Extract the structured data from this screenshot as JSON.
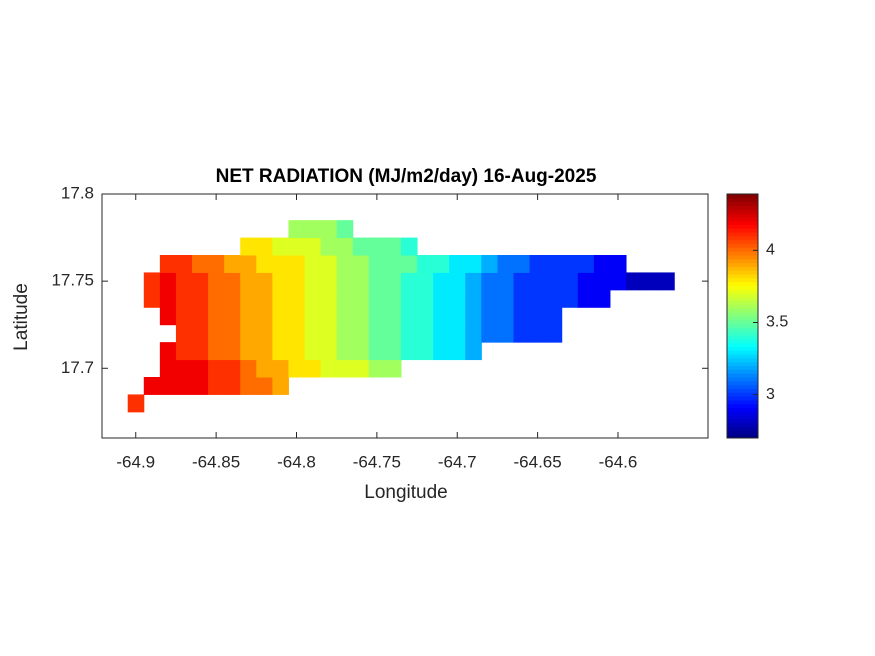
{
  "chart_data": {
    "type": "heatmap",
    "title": "NET RADIATION (MJ/m2/day) 16-Aug-2025",
    "xlabel": "Longitude",
    "ylabel": "Latitude",
    "xlim": [
      -64.921,
      -64.544
    ],
    "ylim": [
      17.66,
      17.8
    ],
    "xticks": [
      -64.9,
      -64.85,
      -64.8,
      -64.75,
      -64.7,
      -64.65,
      -64.6
    ],
    "yticks": [
      17.7,
      17.75,
      17.8
    ],
    "colormap": "jet",
    "clim": [
      2.7,
      4.39
    ],
    "cticks": [
      3,
      3.5,
      4
    ],
    "x": [
      -64.9,
      -64.89,
      -64.88,
      -64.87,
      -64.86,
      -64.85,
      -64.84,
      -64.83,
      -64.82,
      -64.81,
      -64.8,
      -64.79,
      -64.78,
      -64.77,
      -64.76,
      -64.75,
      -64.74,
      -64.73,
      -64.72,
      -64.71,
      -64.7,
      -64.69,
      -64.68,
      -64.67,
      -64.66,
      -64.65,
      -64.64,
      -64.63,
      -64.62,
      -64.61,
      -64.6,
      -64.59,
      -64.58,
      -64.57
    ],
    "y": [
      17.68,
      17.69,
      17.7,
      17.71,
      17.72,
      17.73,
      17.74,
      17.75,
      17.76,
      17.77,
      17.78
    ],
    "z": [
      [
        4.1,
        null,
        null,
        null,
        null,
        null,
        null,
        null,
        null,
        null,
        null,
        null,
        null,
        null,
        null,
        null,
        null,
        null,
        null,
        null,
        null,
        null,
        null,
        null,
        null,
        null,
        null,
        null,
        null,
        null,
        null,
        null,
        null,
        null
      ],
      [
        null,
        4.2,
        4.2,
        4.2,
        4.2,
        4.1,
        4.1,
        4.0,
        4.0,
        3.9,
        null,
        null,
        null,
        null,
        null,
        null,
        null,
        null,
        null,
        null,
        null,
        null,
        null,
        null,
        null,
        null,
        null,
        null,
        null,
        null,
        null,
        null,
        null,
        null
      ],
      [
        null,
        null,
        4.2,
        4.2,
        4.2,
        4.1,
        4.1,
        4.0,
        3.9,
        3.9,
        3.8,
        3.8,
        3.7,
        3.7,
        3.7,
        3.6,
        3.6,
        null,
        null,
        null,
        null,
        null,
        null,
        null,
        null,
        null,
        null,
        null,
        null,
        null,
        null,
        null,
        null,
        null
      ],
      [
        null,
        null,
        4.2,
        4.1,
        4.1,
        4.0,
        4.0,
        3.9,
        3.9,
        3.8,
        3.8,
        3.7,
        3.7,
        3.6,
        3.6,
        3.5,
        3.5,
        3.4,
        3.4,
        3.3,
        3.3,
        3.2,
        null,
        null,
        null,
        null,
        null,
        null,
        null,
        null,
        null,
        null,
        null,
        null
      ],
      [
        null,
        null,
        null,
        4.1,
        4.1,
        4.0,
        4.0,
        3.9,
        3.9,
        3.8,
        3.8,
        3.7,
        3.7,
        3.6,
        3.6,
        3.5,
        3.5,
        3.4,
        3.4,
        3.3,
        3.3,
        3.2,
        3.1,
        3.1,
        3.0,
        3.0,
        3.0,
        null,
        null,
        null,
        null,
        null,
        null,
        null
      ],
      [
        null,
        null,
        4.2,
        4.1,
        4.1,
        4.0,
        4.0,
        3.9,
        3.9,
        3.8,
        3.8,
        3.7,
        3.7,
        3.6,
        3.6,
        3.5,
        3.5,
        3.4,
        3.4,
        3.3,
        3.3,
        3.2,
        3.1,
        3.1,
        3.0,
        3.0,
        3.0,
        null,
        null,
        null,
        null,
        null,
        null,
        null
      ],
      [
        null,
        4.1,
        4.2,
        4.1,
        4.1,
        4.0,
        4.0,
        3.9,
        3.9,
        3.8,
        3.8,
        3.7,
        3.7,
        3.6,
        3.6,
        3.5,
        3.5,
        3.4,
        3.4,
        3.3,
        3.3,
        3.2,
        3.1,
        3.1,
        3.0,
        3.0,
        3.0,
        3.0,
        2.9,
        2.9,
        null,
        null,
        null,
        null
      ],
      [
        null,
        4.1,
        4.2,
        4.1,
        4.1,
        4.0,
        4.0,
        3.9,
        3.9,
        3.8,
        3.8,
        3.7,
        3.7,
        3.6,
        3.6,
        3.5,
        3.5,
        3.4,
        3.4,
        3.3,
        3.3,
        3.2,
        3.1,
        3.1,
        3.0,
        3.0,
        3.0,
        3.0,
        2.9,
        2.9,
        2.9,
        2.8,
        2.8,
        2.8
      ],
      [
        null,
        null,
        4.1,
        4.1,
        4.0,
        4.0,
        3.9,
        3.9,
        3.8,
        3.8,
        3.8,
        3.7,
        3.7,
        3.6,
        3.6,
        3.5,
        3.5,
        3.5,
        3.4,
        3.4,
        3.3,
        3.3,
        3.2,
        3.1,
        3.1,
        3.0,
        3.0,
        3.0,
        3.0,
        2.9,
        2.9,
        null,
        null,
        null
      ],
      [
        null,
        null,
        null,
        null,
        null,
        null,
        null,
        3.8,
        3.8,
        3.7,
        3.7,
        3.7,
        3.6,
        3.6,
        3.5,
        3.5,
        3.5,
        3.4,
        null,
        null,
        null,
        null,
        null,
        null,
        null,
        null,
        null,
        null,
        null,
        null,
        null,
        null,
        null,
        null
      ],
      [
        null,
        null,
        null,
        null,
        null,
        null,
        null,
        null,
        null,
        null,
        3.6,
        3.6,
        3.6,
        3.5,
        null,
        null,
        null,
        null,
        null,
        null,
        null,
        null,
        null,
        null,
        null,
        null,
        null,
        null,
        null,
        null,
        null,
        null,
        null,
        null
      ]
    ]
  }
}
